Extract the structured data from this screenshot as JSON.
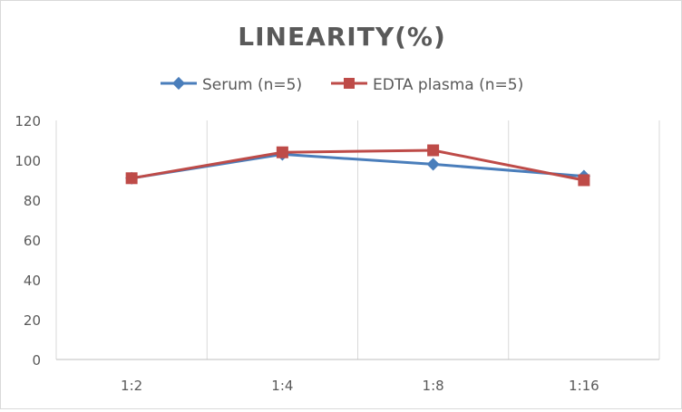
{
  "chart_data": {
    "type": "line",
    "title": "LINEARITY(%)",
    "xlabel": "",
    "ylabel": "",
    "categories": [
      "1:2",
      "1:4",
      "1:8",
      "1:16"
    ],
    "ylim": [
      0,
      120
    ],
    "yticks": [
      "0",
      "20",
      "40",
      "60",
      "80",
      "100",
      "120"
    ],
    "grid": "vertical",
    "legend_position": "top",
    "series": [
      {
        "name": "Serum (n=5)",
        "values": [
          91,
          103,
          98,
          92
        ],
        "color": "#4a7ebb",
        "marker": "diamond"
      },
      {
        "name": "EDTA plasma (n=5)",
        "values": [
          91,
          104,
          105,
          90
        ],
        "color": "#be4b48",
        "marker": "square"
      }
    ]
  }
}
